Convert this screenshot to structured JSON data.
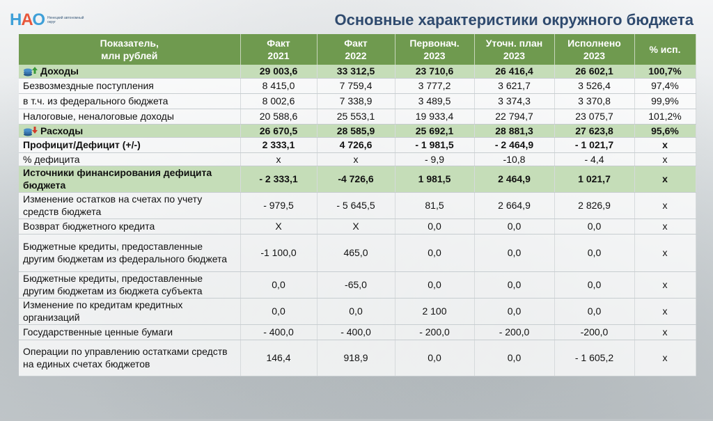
{
  "logo": {
    "mark_n": "Н",
    "mark_a": "А",
    "mark_o": "О",
    "sub": "Ненецкий автономный округ"
  },
  "title": "Основные характеристики окружного бюджета",
  "columns": [
    {
      "l1": "Показатель,",
      "l2": "млн рублей"
    },
    {
      "l1": "Факт",
      "l2": "2021"
    },
    {
      "l1": "Факт",
      "l2": "2022"
    },
    {
      "l1": "Первонач.",
      "l2": "2023"
    },
    {
      "l1": "Уточн. план",
      "l2": "2023"
    },
    {
      "l1": "Исполнено",
      "l2": "2023"
    },
    {
      "l1": "% исп.",
      "l2": ""
    }
  ],
  "rows": [
    {
      "label": "Доходы",
      "icon": "income",
      "v": [
        "29 003,6",
        "33 312,5",
        "23 710,6",
        "26 416,4",
        "26 602,1",
        "100,7%"
      ]
    },
    {
      "label": "Безвозмездные поступления",
      "v": [
        "8 415,0",
        "7 759,4",
        "3 777,2",
        "3 621,7",
        "3 526,4",
        "97,4%"
      ]
    },
    {
      "label": "в т.ч. из федерального бюджета",
      "v": [
        "8 002,6",
        "7 338,9",
        "3 489,5",
        "3 374,3",
        "3 370,8",
        "99,9%"
      ]
    },
    {
      "label": "Налоговые, неналоговые доходы",
      "v": [
        "20 588,6",
        "25 553,1",
        "19 933,4",
        "22 794,7",
        "23 075,7",
        "101,2%"
      ]
    },
    {
      "label": "Расходы",
      "icon": "expense",
      "v": [
        "26 670,5",
        "28 585,9",
        "25 692,1",
        "28 881,3",
        "27 623,8",
        "95,6%"
      ]
    },
    {
      "label": "Профицит/Дефицит (+/-)",
      "v": [
        "2 333,1",
        "4 726,6",
        "- 1 981,5",
        "- 2 464,9",
        "- 1 021,7",
        "x"
      ]
    },
    {
      "label": "% дефицита",
      "v": [
        "x",
        "x",
        "- 9,9",
        "-10,8",
        "- 4,4",
        "x"
      ]
    },
    {
      "label": "Источники финансирования дефицита бюджета",
      "v": [
        "- 2 333,1",
        "-4 726,6",
        "1 981,5",
        "2 464,9",
        "1 021,7",
        "x"
      ]
    },
    {
      "label": "Изменение остатков на счетах по учету средств бюджета",
      "v": [
        "- 979,5",
        "- 5 645,5",
        "81,5",
        "2 664,9",
        "2 826,9",
        "x"
      ]
    },
    {
      "label": "Возврат бюджетного кредита",
      "v": [
        "X",
        "X",
        "0,0",
        "0,0",
        "0,0",
        "x"
      ]
    },
    {
      "label": "Бюджетные кредиты, предоставленные другим бюджетам из федерального бюджета",
      "v": [
        "-1 100,0",
        "465,0",
        "0,0",
        "0,0",
        "0,0",
        "x"
      ]
    },
    {
      "label": "Бюджетные кредиты, предоставленные другим бюджетам из бюджета субъекта",
      "v": [
        "0,0",
        "-65,0",
        "0,0",
        "0,0",
        "0,0",
        "x"
      ]
    },
    {
      "label": "Изменение по кредитам кредитных организаций",
      "v": [
        "0,0",
        "0,0",
        "2 100",
        "0,0",
        "0,0",
        "x"
      ]
    },
    {
      "label": "Государственные ценные бумаги",
      "v": [
        "- 400,0",
        "- 400,0",
        "- 200,0",
        "- 200,0",
        "-200,0",
        "x"
      ]
    },
    {
      "label": "Операции по управлению остатками средств на единых счетах бюджетов",
      "v": [
        "146,4",
        "918,9",
        "0,0",
        "0,0",
        "- 1 605,2",
        "x"
      ]
    }
  ],
  "colors": {
    "header": "#6f9a4f",
    "highlight": "#c5ddb8",
    "title": "#2f4a6e"
  }
}
